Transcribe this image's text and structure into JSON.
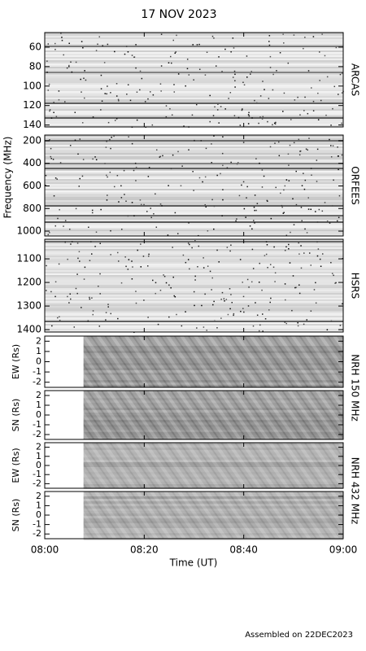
{
  "title": "17 NOV 2023",
  "xlabel": "Time (UT)",
  "ylabel": "Frequency (MHz)",
  "footer": "Assembled on 22DEC2023",
  "xlim": [
    0,
    60
  ],
  "xticks": [
    {
      "value": 0,
      "label": "08:00"
    },
    {
      "value": 20,
      "label": "08:20"
    },
    {
      "value": 40,
      "label": "08:40"
    },
    {
      "value": 60,
      "label": "09:00"
    }
  ],
  "chart_data": [
    {
      "type": "heatmap",
      "label": "ARCAS",
      "ylim": [
        45,
        142
      ],
      "yticks": [
        60,
        80,
        100,
        120,
        140
      ],
      "inverted": true
    },
    {
      "type": "heatmap",
      "label": "ORFEES",
      "ylim": [
        150,
        1043
      ],
      "yticks": [
        200,
        400,
        600,
        800,
        1000
      ],
      "inverted": true
    },
    {
      "type": "heatmap",
      "label": "HSRS",
      "ylim": [
        1017,
        1410
      ],
      "yticks": [
        1100,
        1200,
        1300,
        1400
      ],
      "inverted": true
    },
    {
      "type": "heatmap",
      "label": "NRH 150 MHz",
      "ylabel": "EW (Rs)",
      "ylim": [
        -2.5,
        2.5
      ],
      "yticks": [
        -2,
        -1,
        0,
        1,
        2
      ],
      "inverted": false
    },
    {
      "type": "heatmap",
      "ylabel": "SN (Rs)",
      "ylim": [
        -2.5,
        2.5
      ],
      "yticks": [
        -2,
        -1,
        0,
        1,
        2
      ],
      "inverted": false
    },
    {
      "type": "heatmap",
      "label": "NRH 432 MHz",
      "ylabel": "EW (Rs)",
      "ylim": [
        -2.5,
        2.5
      ],
      "yticks": [
        -2,
        -1,
        0,
        1,
        2
      ],
      "inverted": false
    },
    {
      "type": "heatmap",
      "ylabel": "SN (Rs)",
      "ylim": [
        -2.5,
        2.5
      ],
      "yticks": [
        -2,
        -1,
        0,
        1,
        2
      ],
      "inverted": false
    }
  ]
}
